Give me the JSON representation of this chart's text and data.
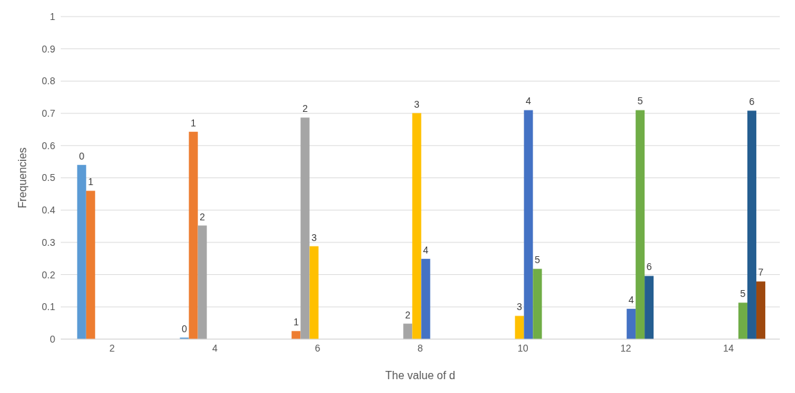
{
  "chart_data": {
    "type": "bar",
    "xlabel": "The value of d",
    "ylabel": "Frequencies",
    "categories": [
      "2",
      "4",
      "6",
      "8",
      "10",
      "12",
      "14"
    ],
    "series": [
      {
        "name": "0",
        "color": "#5b9bd5",
        "values": [
          0.54,
          0.005,
          null,
          null,
          null,
          null,
          null
        ]
      },
      {
        "name": "1",
        "color": "#ed7d31",
        "values": [
          0.46,
          0.643,
          0.025,
          null,
          null,
          null,
          null
        ]
      },
      {
        "name": "2",
        "color": "#a5a5a5",
        "values": [
          null,
          0.352,
          0.687,
          0.048,
          null,
          null,
          null
        ]
      },
      {
        "name": "3",
        "color": "#ffc000",
        "values": [
          null,
          null,
          0.288,
          0.701,
          0.072,
          null,
          null
        ]
      },
      {
        "name": "4",
        "color": "#4472c4",
        "values": [
          null,
          null,
          null,
          0.249,
          0.71,
          0.094,
          null
        ]
      },
      {
        "name": "5",
        "color": "#70ad47",
        "values": [
          null,
          null,
          null,
          null,
          0.218,
          0.71,
          0.113
        ]
      },
      {
        "name": "6",
        "color": "#255e91",
        "values": [
          null,
          null,
          null,
          null,
          null,
          0.196,
          0.708
        ]
      },
      {
        "name": "7",
        "color": "#9e480e",
        "values": [
          null,
          null,
          null,
          null,
          null,
          null,
          0.179
        ]
      }
    ],
    "ylim": [
      0,
      1
    ],
    "yticks": [
      0,
      0.1,
      0.2,
      0.3,
      0.4,
      0.5,
      0.6,
      0.7,
      0.8,
      0.9,
      1
    ],
    "grid": "y",
    "legend": false
  }
}
